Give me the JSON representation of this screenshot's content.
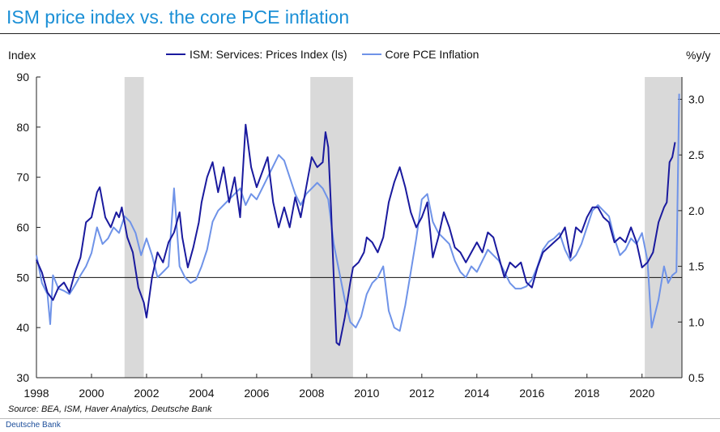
{
  "title": "ISM price index vs. the core PCE inflation",
  "left_axis_label": "Index",
  "right_axis_label": "%y/y",
  "source": "Source: BEA,  ISM, Haver Analytics, Deutsche Bank",
  "footer": "Deutsche Bank",
  "colors": {
    "ism": "#1a1a9e",
    "pce": "#6f93e8",
    "recession": "#d9d9d9",
    "title": "#1a8fd6"
  },
  "chart_data": {
    "type": "line",
    "title": "ISM price index vs. the core PCE inflation",
    "xlabel": "",
    "ylabel": "Index",
    "y2label": "%y/y",
    "xlim": [
      1998,
      2021.45
    ],
    "ylim": [
      30,
      90
    ],
    "y2lim": [
      0.5,
      3.2
    ],
    "x_ticks": [
      1998,
      2000,
      2002,
      2004,
      2006,
      2008,
      2010,
      2012,
      2014,
      2016,
      2018,
      2020
    ],
    "y_ticks": [
      30,
      40,
      50,
      60,
      70,
      80,
      90
    ],
    "y2_ticks": [
      0.5,
      1.0,
      1.5,
      2.0,
      2.5,
      3.0
    ],
    "reference_line": 50,
    "recessions": [
      [
        2001.2,
        2001.9
      ],
      [
        2007.95,
        2009.5
      ],
      [
        2020.1,
        2021.45
      ]
    ],
    "series": [
      {
        "name": "ISM: Services: Prices Index (ls)",
        "axis": "left",
        "points": [
          [
            1998.0,
            53.5
          ],
          [
            1998.2,
            51
          ],
          [
            1998.4,
            47
          ],
          [
            1998.6,
            45.5
          ],
          [
            1998.8,
            48
          ],
          [
            1999.0,
            49
          ],
          [
            1999.2,
            47
          ],
          [
            1999.4,
            51
          ],
          [
            1999.6,
            54
          ],
          [
            1999.8,
            61
          ],
          [
            2000.0,
            62
          ],
          [
            2000.2,
            67
          ],
          [
            2000.3,
            68
          ],
          [
            2000.5,
            62
          ],
          [
            2000.7,
            60
          ],
          [
            2000.9,
            63
          ],
          [
            2001.0,
            62
          ],
          [
            2001.1,
            64
          ],
          [
            2001.3,
            58
          ],
          [
            2001.5,
            55
          ],
          [
            2001.7,
            48
          ],
          [
            2001.9,
            45
          ],
          [
            2002.0,
            42
          ],
          [
            2002.2,
            50
          ],
          [
            2002.4,
            55
          ],
          [
            2002.6,
            53
          ],
          [
            2002.8,
            57
          ],
          [
            2003.0,
            59
          ],
          [
            2003.2,
            63
          ],
          [
            2003.3,
            58
          ],
          [
            2003.5,
            52
          ],
          [
            2003.7,
            56
          ],
          [
            2003.9,
            61
          ],
          [
            2004.0,
            65
          ],
          [
            2004.2,
            70
          ],
          [
            2004.4,
            73
          ],
          [
            2004.6,
            67
          ],
          [
            2004.8,
            72
          ],
          [
            2005.0,
            65
          ],
          [
            2005.2,
            70
          ],
          [
            2005.4,
            62
          ],
          [
            2005.6,
            80.5
          ],
          [
            2005.8,
            72
          ],
          [
            2006.0,
            68
          ],
          [
            2006.2,
            71
          ],
          [
            2006.4,
            74
          ],
          [
            2006.6,
            65
          ],
          [
            2006.8,
            60
          ],
          [
            2007.0,
            64
          ],
          [
            2007.2,
            60
          ],
          [
            2007.4,
            66
          ],
          [
            2007.6,
            62
          ],
          [
            2007.8,
            68
          ],
          [
            2008.0,
            74
          ],
          [
            2008.2,
            72
          ],
          [
            2008.4,
            73
          ],
          [
            2008.5,
            79
          ],
          [
            2008.6,
            76
          ],
          [
            2008.7,
            64
          ],
          [
            2008.8,
            50
          ],
          [
            2008.9,
            37
          ],
          [
            2009.0,
            36.5
          ],
          [
            2009.2,
            42
          ],
          [
            2009.4,
            49
          ],
          [
            2009.5,
            52
          ],
          [
            2009.7,
            53
          ],
          [
            2009.9,
            55
          ],
          [
            2010.0,
            58
          ],
          [
            2010.2,
            57
          ],
          [
            2010.4,
            55
          ],
          [
            2010.6,
            58
          ],
          [
            2010.8,
            65
          ],
          [
            2011.0,
            69
          ],
          [
            2011.2,
            72
          ],
          [
            2011.4,
            68
          ],
          [
            2011.6,
            63
          ],
          [
            2011.8,
            60
          ],
          [
            2012.0,
            62
          ],
          [
            2012.2,
            65
          ],
          [
            2012.4,
            54
          ],
          [
            2012.6,
            58
          ],
          [
            2012.8,
            63
          ],
          [
            2013.0,
            60
          ],
          [
            2013.2,
            56
          ],
          [
            2013.4,
            55
          ],
          [
            2013.6,
            53
          ],
          [
            2013.8,
            55
          ],
          [
            2014.0,
            57
          ],
          [
            2014.2,
            55
          ],
          [
            2014.4,
            59
          ],
          [
            2014.6,
            58
          ],
          [
            2014.8,
            54
          ],
          [
            2015.0,
            50
          ],
          [
            2015.2,
            53
          ],
          [
            2015.4,
            52
          ],
          [
            2015.6,
            53
          ],
          [
            2015.8,
            49
          ],
          [
            2016.0,
            48
          ],
          [
            2016.2,
            52
          ],
          [
            2016.4,
            55
          ],
          [
            2016.6,
            56
          ],
          [
            2016.8,
            57
          ],
          [
            2017.0,
            58
          ],
          [
            2017.2,
            60
          ],
          [
            2017.4,
            54
          ],
          [
            2017.6,
            60
          ],
          [
            2017.8,
            59
          ],
          [
            2018.0,
            62
          ],
          [
            2018.2,
            64
          ],
          [
            2018.4,
            64
          ],
          [
            2018.6,
            62
          ],
          [
            2018.8,
            61
          ],
          [
            2019.0,
            57
          ],
          [
            2019.2,
            58
          ],
          [
            2019.4,
            57
          ],
          [
            2019.6,
            60
          ],
          [
            2019.8,
            57
          ],
          [
            2020.0,
            52
          ],
          [
            2020.2,
            53
          ],
          [
            2020.4,
            55
          ],
          [
            2020.6,
            61
          ],
          [
            2020.8,
            64
          ],
          [
            2020.9,
            65
          ],
          [
            2021.0,
            73
          ],
          [
            2021.1,
            74
          ],
          [
            2021.2,
            77
          ]
        ]
      },
      {
        "name": "Core PCE Inflation",
        "axis": "right",
        "points": [
          [
            1998.0,
            1.6
          ],
          [
            1998.2,
            1.35
          ],
          [
            1998.4,
            1.25
          ],
          [
            1998.5,
            0.98
          ],
          [
            1998.6,
            1.42
          ],
          [
            1998.8,
            1.3
          ],
          [
            1999.0,
            1.28
          ],
          [
            1999.2,
            1.25
          ],
          [
            1999.4,
            1.33
          ],
          [
            1999.6,
            1.42
          ],
          [
            1999.8,
            1.5
          ],
          [
            2000.0,
            1.62
          ],
          [
            2000.2,
            1.85
          ],
          [
            2000.4,
            1.7
          ],
          [
            2000.6,
            1.75
          ],
          [
            2000.8,
            1.85
          ],
          [
            2001.0,
            1.8
          ],
          [
            2001.2,
            1.95
          ],
          [
            2001.4,
            1.9
          ],
          [
            2001.6,
            1.8
          ],
          [
            2001.8,
            1.6
          ],
          [
            2002.0,
            1.75
          ],
          [
            2002.2,
            1.6
          ],
          [
            2002.4,
            1.4
          ],
          [
            2002.6,
            1.45
          ],
          [
            2002.8,
            1.5
          ],
          [
            2003.0,
            2.2
          ],
          [
            2003.2,
            1.5
          ],
          [
            2003.4,
            1.4
          ],
          [
            2003.6,
            1.35
          ],
          [
            2003.8,
            1.38
          ],
          [
            2004.0,
            1.5
          ],
          [
            2004.2,
            1.65
          ],
          [
            2004.4,
            1.9
          ],
          [
            2004.6,
            2.0
          ],
          [
            2004.8,
            2.05
          ],
          [
            2005.0,
            2.1
          ],
          [
            2005.2,
            2.15
          ],
          [
            2005.4,
            2.2
          ],
          [
            2005.6,
            2.05
          ],
          [
            2005.8,
            2.15
          ],
          [
            2006.0,
            2.1
          ],
          [
            2006.2,
            2.2
          ],
          [
            2006.4,
            2.3
          ],
          [
            2006.6,
            2.4
          ],
          [
            2006.8,
            2.5
          ],
          [
            2007.0,
            2.45
          ],
          [
            2007.2,
            2.3
          ],
          [
            2007.4,
            2.15
          ],
          [
            2007.6,
            2.05
          ],
          [
            2007.8,
            2.15
          ],
          [
            2008.0,
            2.2
          ],
          [
            2008.2,
            2.25
          ],
          [
            2008.4,
            2.2
          ],
          [
            2008.6,
            2.1
          ],
          [
            2008.8,
            1.7
          ],
          [
            2009.0,
            1.45
          ],
          [
            2009.2,
            1.2
          ],
          [
            2009.4,
            1.0
          ],
          [
            2009.6,
            0.95
          ],
          [
            2009.8,
            1.05
          ],
          [
            2010.0,
            1.25
          ],
          [
            2010.2,
            1.35
          ],
          [
            2010.4,
            1.4
          ],
          [
            2010.6,
            1.5
          ],
          [
            2010.8,
            1.1
          ],
          [
            2011.0,
            0.95
          ],
          [
            2011.2,
            0.92
          ],
          [
            2011.4,
            1.15
          ],
          [
            2011.6,
            1.45
          ],
          [
            2011.8,
            1.75
          ],
          [
            2012.0,
            2.1
          ],
          [
            2012.2,
            2.15
          ],
          [
            2012.4,
            1.9
          ],
          [
            2012.6,
            1.8
          ],
          [
            2012.8,
            1.75
          ],
          [
            2013.0,
            1.7
          ],
          [
            2013.2,
            1.55
          ],
          [
            2013.4,
            1.45
          ],
          [
            2013.6,
            1.4
          ],
          [
            2013.8,
            1.5
          ],
          [
            2014.0,
            1.45
          ],
          [
            2014.2,
            1.55
          ],
          [
            2014.4,
            1.65
          ],
          [
            2014.6,
            1.6
          ],
          [
            2014.8,
            1.55
          ],
          [
            2015.0,
            1.45
          ],
          [
            2015.2,
            1.35
          ],
          [
            2015.4,
            1.3
          ],
          [
            2015.6,
            1.3
          ],
          [
            2015.8,
            1.32
          ],
          [
            2016.0,
            1.38
          ],
          [
            2016.2,
            1.5
          ],
          [
            2016.4,
            1.65
          ],
          [
            2016.6,
            1.72
          ],
          [
            2016.8,
            1.75
          ],
          [
            2017.0,
            1.8
          ],
          [
            2017.2,
            1.65
          ],
          [
            2017.4,
            1.55
          ],
          [
            2017.6,
            1.6
          ],
          [
            2017.8,
            1.7
          ],
          [
            2018.0,
            1.85
          ],
          [
            2018.2,
            2.0
          ],
          [
            2018.4,
            2.05
          ],
          [
            2018.6,
            2.0
          ],
          [
            2018.8,
            1.95
          ],
          [
            2019.0,
            1.75
          ],
          [
            2019.2,
            1.6
          ],
          [
            2019.4,
            1.65
          ],
          [
            2019.6,
            1.75
          ],
          [
            2019.8,
            1.7
          ],
          [
            2020.0,
            1.8
          ],
          [
            2020.2,
            1.55
          ],
          [
            2020.35,
            0.95
          ],
          [
            2020.6,
            1.2
          ],
          [
            2020.8,
            1.5
          ],
          [
            2020.95,
            1.35
          ],
          [
            2021.1,
            1.42
          ],
          [
            2021.25,
            1.45
          ],
          [
            2021.35,
            3.05
          ]
        ]
      }
    ]
  }
}
